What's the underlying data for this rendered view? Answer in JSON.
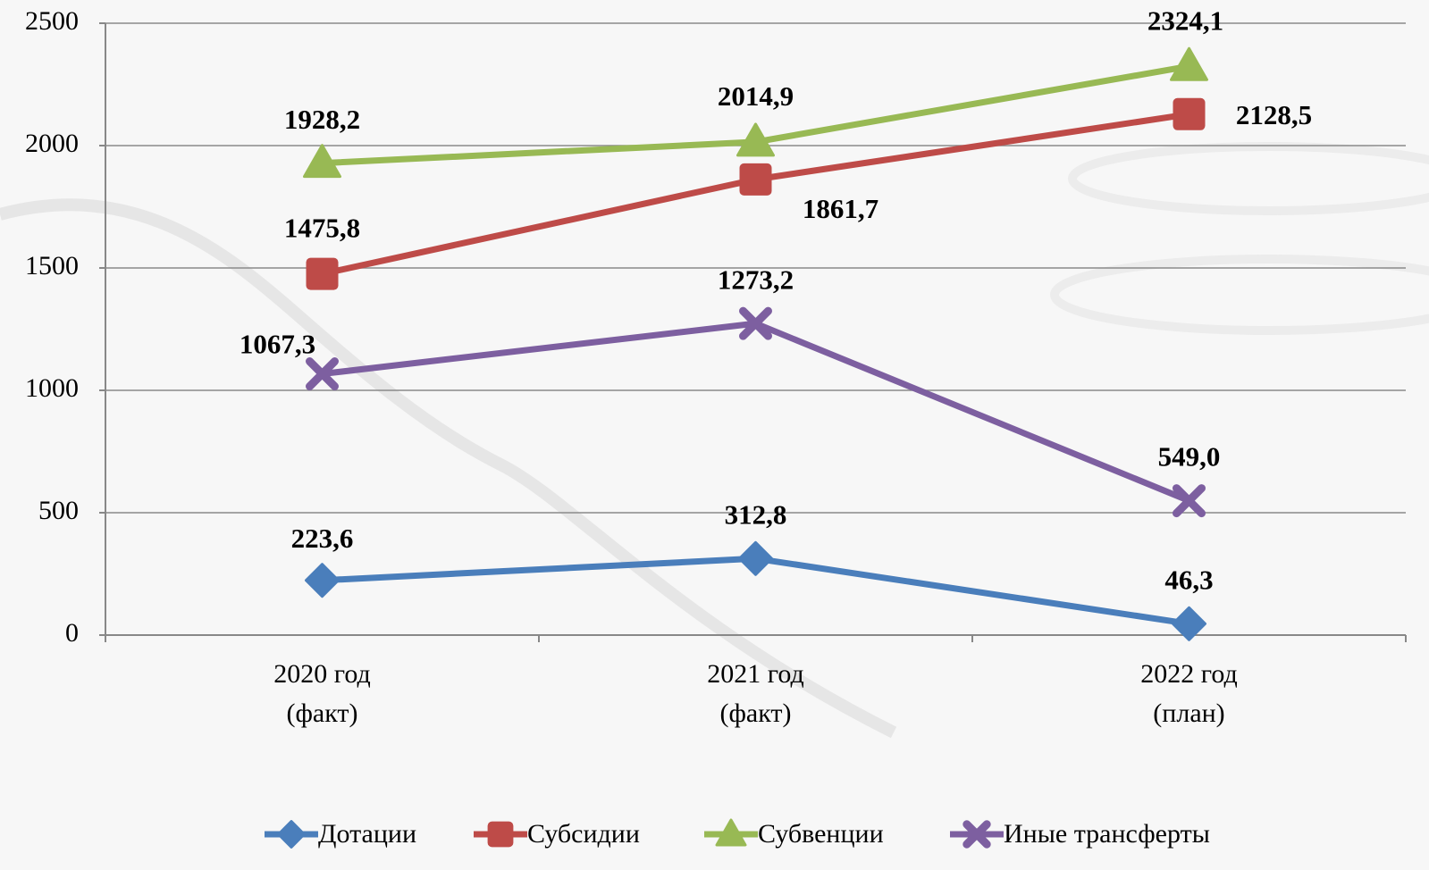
{
  "chart_data": {
    "type": "line",
    "categories": [
      [
        "2020 год",
        "(факт)"
      ],
      [
        "2021 год",
        "(факт)"
      ],
      [
        "2022 год",
        "(план)"
      ]
    ],
    "series": [
      {
        "name": "Дотации",
        "color": "#4a7ebb",
        "marker": "diamond",
        "values": [
          223.6,
          312.8,
          46.3
        ],
        "value_labels": [
          "223,6",
          "312,8",
          "46,3"
        ]
      },
      {
        "name": "Субсидии",
        "color": "#be4b48",
        "marker": "square",
        "values": [
          1475.8,
          1861.7,
          2128.5
        ],
        "value_labels": [
          "1475,8",
          "1861,7",
          "2128,5"
        ]
      },
      {
        "name": "Субвенции",
        "color": "#98b954",
        "marker": "triangle",
        "values": [
          1928.2,
          2014.9,
          2324.1
        ],
        "value_labels": [
          "1928,2",
          "2014,9",
          "2324,1"
        ]
      },
      {
        "name": "Иные трансферты",
        "color": "#7d5fa0",
        "marker": "x",
        "values": [
          1067.3,
          1273.2,
          549.0
        ],
        "value_labels": [
          "1067,3",
          "1273,2",
          "549,0"
        ]
      }
    ],
    "ylim": [
      0,
      2500
    ],
    "yticks": [
      0,
      500,
      1000,
      1500,
      2000,
      2500
    ],
    "grid": true,
    "legend": "bottom"
  }
}
